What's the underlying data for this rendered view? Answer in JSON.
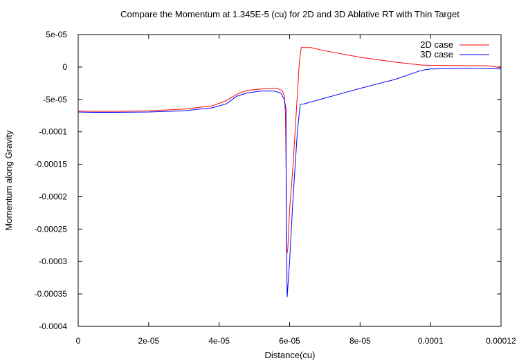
{
  "chart_data": {
    "type": "line",
    "title": "Compare the Momentum at 1.345E-5 (cu) for 2D and 3D Ablative RT with Thin Target",
    "xlabel": "Distance(cu)",
    "ylabel": "Momentum along Gravity",
    "xlim": [
      0,
      0.00012
    ],
    "ylim": [
      -0.0004,
      5e-05
    ],
    "x_ticks": [
      0,
      2e-05,
      4e-05,
      6e-05,
      8e-05,
      0.0001,
      0.00012
    ],
    "x_tick_labels": [
      "0",
      "2e-05",
      "4e-05",
      "6e-05",
      "8e-05",
      "0.0001",
      "0.00012"
    ],
    "y_ticks": [
      5e-05,
      0,
      -5e-05,
      -0.0001,
      -0.00015,
      -0.0002,
      -0.00025,
      -0.0003,
      -0.00035,
      -0.0004
    ],
    "y_tick_labels": [
      "5e-05",
      "0",
      "-5e-05",
      "-0.0001",
      "-0.00015",
      "-0.0002",
      "-0.00025",
      "-0.0003",
      "-0.00035",
      "-0.0004"
    ],
    "grid": false,
    "legend_position": "top-right",
    "series": [
      {
        "name": "2D case",
        "color": "#ff0000",
        "points": [
          [
            0,
            -6.8e-05
          ],
          [
            5e-06,
            -6.85e-05
          ],
          [
            1e-05,
            -6.85e-05
          ],
          [
            2e-05,
            -6.75e-05
          ],
          [
            3e-05,
            -6.5e-05
          ],
          [
            3.8e-05,
            -6e-05
          ],
          [
            4.2e-05,
            -5.2e-05
          ],
          [
            4.5e-05,
            -4.2e-05
          ],
          [
            4.8e-05,
            -3.6e-05
          ],
          [
            5.2e-05,
            -3.4e-05
          ],
          [
            5.5e-05,
            -3.25e-05
          ],
          [
            5.65e-05,
            -3.3e-05
          ],
          [
            5.8e-05,
            -3.7e-05
          ],
          [
            5.85e-05,
            -4.5e-05
          ],
          [
            5.88e-05,
            -7e-05
          ],
          [
            5.9e-05,
            -0.00015
          ],
          [
            5.92e-05,
            -0.00029
          ],
          [
            5.95e-05,
            -0.00028
          ],
          [
            6e-05,
            -0.00022
          ],
          [
            6.1e-05,
            -0.00015
          ],
          [
            6.2e-05,
            -6e-05
          ],
          [
            6.28e-05,
            1e-05
          ],
          [
            6.33e-05,
            3e-05
          ],
          [
            6.6e-05,
            3e-05
          ],
          [
            7e-05,
            2.5e-05
          ],
          [
            8e-05,
            1.5e-05
          ],
          [
            9e-05,
            7.5e-06
          ],
          [
            9.75e-05,
            3e-06
          ],
          [
            0.0001,
            2.5e-06
          ],
          [
            0.00011,
            2e-06
          ],
          [
            0.000116,
            2e-06
          ],
          [
            0.00012,
            -1e-06
          ]
        ]
      },
      {
        "name": "3D case",
        "color": "#0000ff",
        "points": [
          [
            0,
            -6.95e-05
          ],
          [
            5e-06,
            -7e-05
          ],
          [
            1e-05,
            -7e-05
          ],
          [
            2e-05,
            -6.95e-05
          ],
          [
            3e-05,
            -6.75e-05
          ],
          [
            3.8e-05,
            -6.3e-05
          ],
          [
            4.2e-05,
            -5.7e-05
          ],
          [
            4.5e-05,
            -4.5e-05
          ],
          [
            4.8e-05,
            -4e-05
          ],
          [
            5.2e-05,
            -3.7e-05
          ],
          [
            5.55e-05,
            -3.7e-05
          ],
          [
            5.75e-05,
            -4e-05
          ],
          [
            5.85e-05,
            -5e-05
          ],
          [
            5.9e-05,
            -6.6e-05
          ],
          [
            5.9e-05,
            -0.00015
          ],
          [
            5.93e-05,
            -0.000355
          ],
          [
            6e-05,
            -0.0003
          ],
          [
            6.1e-05,
            -0.0002
          ],
          [
            6.22e-05,
            -0.0001
          ],
          [
            6.3e-05,
            -5.75e-05
          ],
          [
            6.4e-05,
            -5.7e-05
          ],
          [
            7e-05,
            -4.8e-05
          ],
          [
            8e-05,
            -3.3e-05
          ],
          [
            9e-05,
            -1.9e-05
          ],
          [
            9.75e-05,
            -5e-06
          ],
          [
            0.0001,
            -3e-06
          ],
          [
            0.00011,
            -2e-06
          ],
          [
            0.000116,
            -2.5e-06
          ],
          [
            0.00012,
            -3e-06
          ]
        ]
      }
    ]
  }
}
